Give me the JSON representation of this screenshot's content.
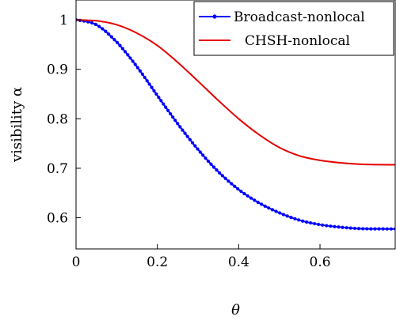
{
  "chart_data": {
    "type": "line",
    "title": "",
    "xlabel": "θ",
    "ylabel": "visibility α",
    "xlim": [
      0,
      0.785
    ],
    "ylim": [
      0.537,
      1.04
    ],
    "xticks": [
      0,
      0.2,
      0.4,
      0.6
    ],
    "xtick_labels": [
      "0",
      "0.2",
      "0.4",
      "0.6"
    ],
    "yticks": [
      0.6,
      0.7,
      0.8,
      0.9,
      1
    ],
    "ytick_labels": [
      "0.6",
      "0.7",
      "0.8",
      "0.9",
      "1"
    ],
    "grid": false,
    "legend_position": "top-right",
    "series": [
      {
        "name": "Broadcast-nonlocal",
        "color": "#0000ff",
        "marker": "circle",
        "x": [
          0,
          0.05,
          0.1,
          0.15,
          0.2,
          0.25,
          0.3,
          0.35,
          0.4,
          0.45,
          0.5,
          0.55,
          0.6,
          0.65,
          0.7,
          0.75,
          0.785
        ],
        "y": [
          1.0,
          0.99,
          0.955,
          0.905,
          0.847,
          0.79,
          0.738,
          0.693,
          0.657,
          0.63,
          0.61,
          0.595,
          0.586,
          0.581,
          0.578,
          0.5775,
          0.5774
        ]
      },
      {
        "name": "CHSH-nonlocal",
        "color": "#e60000",
        "marker": "none",
        "x": [
          0,
          0.05,
          0.1,
          0.15,
          0.2,
          0.25,
          0.3,
          0.35,
          0.4,
          0.45,
          0.5,
          0.55,
          0.6,
          0.65,
          0.7,
          0.75,
          0.785
        ],
        "y": [
          1.0,
          0.998,
          0.99,
          0.973,
          0.948,
          0.914,
          0.876,
          0.837,
          0.8,
          0.768,
          0.742,
          0.725,
          0.716,
          0.711,
          0.708,
          0.7072,
          0.7071
        ]
      }
    ]
  }
}
